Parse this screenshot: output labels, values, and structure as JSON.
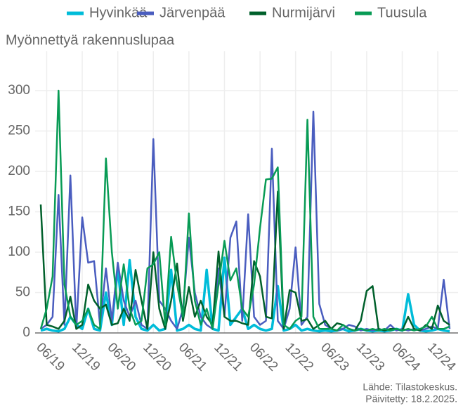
{
  "chart_data": {
    "type": "line",
    "y_label": "Myönnettyä rakennuslupaa",
    "source": "Lähde: Tilastokeskus.",
    "updated": "Päivitetty: 18.2.2025.",
    "categories": [
      null,
      "06/19",
      null,
      null,
      null,
      null,
      null,
      "12/19",
      null,
      null,
      null,
      null,
      null,
      "06/20",
      null,
      null,
      null,
      null,
      null,
      "12/20",
      null,
      null,
      null,
      null,
      null,
      "06/21",
      null,
      null,
      null,
      null,
      null,
      "12/21",
      null,
      null,
      null,
      null,
      null,
      "06/22",
      null,
      null,
      null,
      null,
      null,
      "12/22",
      null,
      null,
      null,
      null,
      null,
      "06/23",
      null,
      null,
      null,
      null,
      null,
      "12/23",
      null,
      null,
      null,
      null,
      null,
      "06/24",
      null,
      null,
      null,
      null,
      null,
      "12/24",
      null,
      null
    ],
    "series": [
      {
        "name": "Hyvinkää",
        "color": "#00bcd9",
        "width": 3.5,
        "values": [
          3,
          5,
          3,
          2,
          5,
          20,
          10,
          5,
          30,
          5,
          3,
          50,
          10,
          80,
          10,
          90,
          20,
          5,
          3,
          10,
          3,
          5,
          78,
          3,
          5,
          10,
          5,
          3,
          78,
          5,
          3,
          93,
          10,
          20,
          30,
          5,
          10,
          5,
          3,
          5,
          58,
          3,
          5,
          10,
          3,
          5,
          3,
          2,
          3,
          2,
          3,
          5,
          2,
          3,
          5,
          3,
          2,
          3,
          2,
          3,
          5,
          3,
          48,
          10,
          3,
          2,
          3,
          5,
          3,
          2
        ]
      },
      {
        "name": "Järvenpää",
        "color": "#4a5dbf",
        "width": 2.5,
        "values": [
          5,
          10,
          20,
          171,
          10,
          195,
          5,
          143,
          87,
          89,
          10,
          80,
          15,
          87,
          40,
          20,
          40,
          10,
          5,
          240,
          40,
          30,
          15,
          5,
          30,
          118,
          50,
          20,
          10,
          5,
          80,
          20,
          118,
          138,
          15,
          147,
          20,
          10,
          15,
          228,
          15,
          5,
          30,
          106,
          10,
          20,
          274,
          36,
          10,
          5,
          3,
          5,
          10,
          8,
          3,
          5,
          3,
          5,
          3,
          10,
          3,
          5,
          3,
          5,
          3,
          5,
          8,
          5,
          66,
          5
        ]
      },
      {
        "name": "Nurmijärvi",
        "color": "#00602b",
        "width": 2.5,
        "values": [
          159,
          10,
          8,
          5,
          15,
          45,
          5,
          10,
          60,
          40,
          30,
          35,
          10,
          12,
          30,
          15,
          78,
          40,
          5,
          100,
          30,
          5,
          40,
          86,
          15,
          57,
          20,
          40,
          20,
          10,
          101,
          20,
          15,
          15,
          12,
          10,
          89,
          70,
          20,
          18,
          175,
          5,
          53,
          50,
          15,
          17,
          5,
          10,
          15,
          5,
          12,
          10,
          5,
          3,
          15,
          52,
          58,
          5,
          3,
          5,
          5,
          3,
          20,
          5,
          3,
          10,
          5,
          34,
          15,
          10
        ]
      },
      {
        "name": "Tuusula",
        "color": "#089b55",
        "width": 2.5,
        "values": [
          5,
          30,
          70,
          300,
          60,
          20,
          10,
          15,
          30,
          10,
          5,
          216,
          100,
          30,
          85,
          30,
          10,
          15,
          80,
          85,
          100,
          10,
          119,
          60,
          20,
          148,
          40,
          10,
          30,
          5,
          60,
          114,
          65,
          80,
          30,
          20,
          60,
          130,
          190,
          191,
          205,
          10,
          5,
          15,
          20,
          264,
          20,
          5,
          5,
          5,
          3,
          10,
          5,
          3,
          5,
          3,
          5,
          3,
          5,
          3,
          5,
          3,
          5,
          3,
          5,
          8,
          20,
          5,
          5,
          8
        ]
      }
    ],
    "ylim": [
      0,
      340
    ],
    "yticks": [
      0,
      50,
      100,
      150,
      200,
      250,
      300
    ],
    "grid": true
  }
}
